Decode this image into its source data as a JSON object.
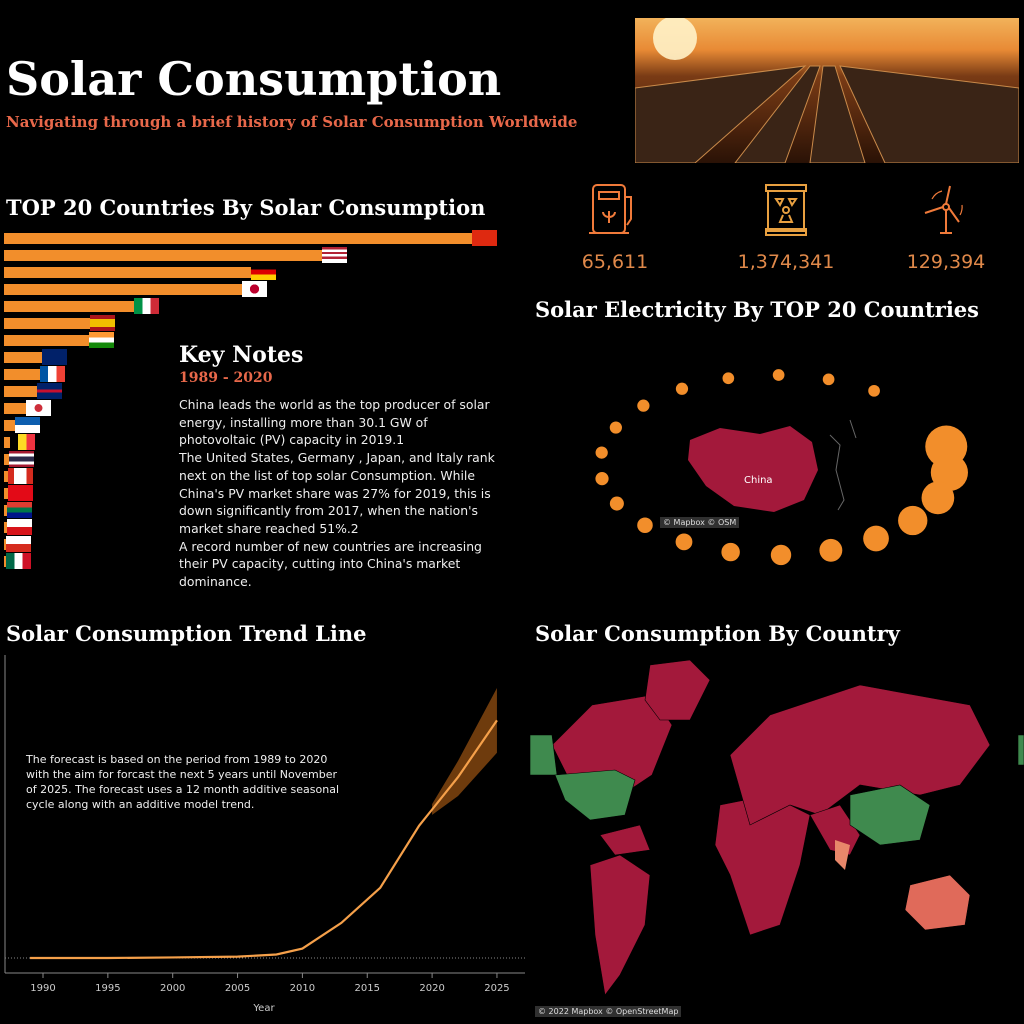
{
  "header": {
    "title": "Solar Consumption",
    "subtitle": "Navigating through a brief history of Solar Consumption Worldwide"
  },
  "top20": {
    "title": "TOP 20 Countries By Solar Consumption",
    "countries": [
      {
        "name": "China",
        "value": 100
      },
      {
        "name": "United States",
        "value": 68
      },
      {
        "name": "Germany",
        "value": 53
      },
      {
        "name": "Japan",
        "value": 51
      },
      {
        "name": "Italy",
        "value": 28
      },
      {
        "name": "Spain",
        "value": 18.7
      },
      {
        "name": "India",
        "value": 18.5
      },
      {
        "name": "Australia",
        "value": 8.6
      },
      {
        "name": "France",
        "value": 8
      },
      {
        "name": "United Kingdom",
        "value": 7.5
      },
      {
        "name": "South Korea",
        "value": 5.2
      },
      {
        "name": "Greece",
        "value": 2.8
      },
      {
        "name": "Belgium",
        "value": 1.7
      },
      {
        "name": "Thailand",
        "value": 1.5
      },
      {
        "name": "Canada",
        "value": 1.3
      },
      {
        "name": "Turkey",
        "value": 1.2
      },
      {
        "name": "South Africa",
        "value": 1.1
      },
      {
        "name": "Czechia",
        "value": 1
      },
      {
        "name": "Chile",
        "value": 0.9
      },
      {
        "name": "Mexico",
        "value": 0.8
      }
    ]
  },
  "key_notes": {
    "title": "Key Notes",
    "years": "1989 - 2020",
    "text": "China leads the world as the top producer of solar energy, installing more than 30.1 GW of photovoltaic (PV) capacity in 2019.1\nThe United States, Germany , Japan, and Italy rank next on the list of top solar Consumption. While China's PV market share was 27% for 2019, this is down significantly from 2017, when the nation's market share reached 51%.2\nA record number of new countries are increasing their PV capacity, cutting into China's market dominance."
  },
  "kpis": [
    {
      "icon": "biofuel-pump-icon",
      "value": "65,611"
    },
    {
      "icon": "nuclear-barrel-icon",
      "value": "1,374,341"
    },
    {
      "icon": "wind-turbine-icon",
      "value": "129,394"
    }
  ],
  "electricity": {
    "title": "Solar Electricity By TOP 20 Countries",
    "map_label": "China",
    "attribution": "© Mapbox © OSM",
    "bubbles": [
      100,
      75,
      55,
      42,
      30,
      22,
      16,
      12,
      9,
      7,
      5,
      4,
      3,
      3,
      3,
      3,
      2.5,
      2.5,
      2.5,
      2.5
    ]
  },
  "trend": {
    "title": "Solar Consumption Trend Line",
    "note": "The forecast is based on the period from 1989  to  2020 with the aim for forcast the next 5 years  until November of 2025. The forecast uses a 12 month additive seasonal cycle along with an additive model trend.",
    "xlabel": "Year",
    "xticks": [
      "1990",
      "1995",
      "2000",
      "2005",
      "2010",
      "2015",
      "2020",
      "2025"
    ]
  },
  "world": {
    "title": "Solar Consumption By Country",
    "attribution": "© 2022 Mapbox © OpenStreetMap"
  },
  "chart_data": {
    "type": "line",
    "title": "Solar Consumption Trend Line",
    "xlabel": "Year",
    "ylabel": "",
    "xlim": [
      1988,
      2027
    ],
    "ylim": [
      0,
      100
    ],
    "x": [
      1989,
      1995,
      2000,
      2005,
      2008,
      2010,
      2013,
      2016,
      2019,
      2020,
      2022,
      2025
    ],
    "values": [
      0,
      0,
      0.2,
      0.5,
      1.3,
      3.5,
      13,
      26,
      49,
      55,
      67,
      88
    ],
    "forecast_band": {
      "x": [
        2020,
        2022,
        2025
      ],
      "low": [
        53,
        60,
        76
      ],
      "high": [
        57,
        73,
        100
      ]
    }
  },
  "colors": {
    "accent": "#f28e2b",
    "highlight": "#e8684a",
    "map_red": "#a3193b",
    "map_green": "#3f8a4e"
  }
}
